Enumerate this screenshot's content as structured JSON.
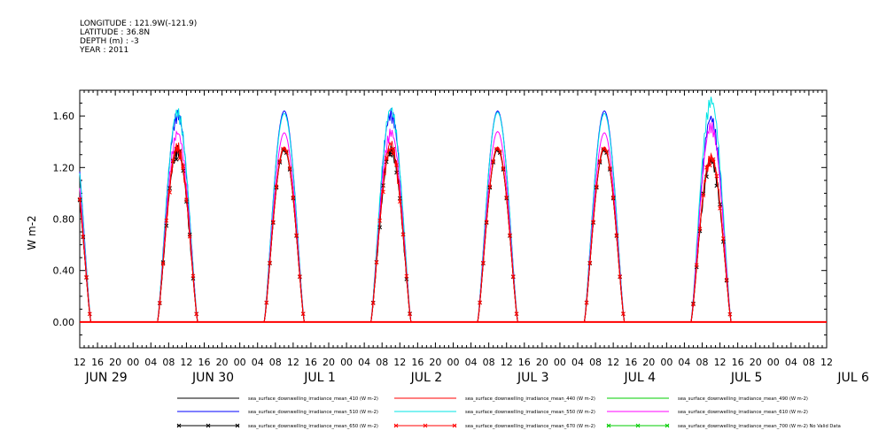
{
  "header": {
    "longitude": "LONGITUDE : 121.9W(-121.9)",
    "latitude": "LATITUDE : 36.8N",
    "depth": "DEPTH (m) : -3",
    "year": "YEAR : 2011"
  },
  "chart_data": {
    "type": "line",
    "ylabel": "W m-2",
    "ylim": [
      -0.2,
      1.8
    ],
    "yticks": [
      0.0,
      0.4,
      0.8,
      1.2,
      1.6
    ],
    "ytick_labels": [
      "0.00",
      "0.40",
      "0.80",
      "1.20",
      "1.60"
    ],
    "xlim_hours": [
      0,
      168
    ],
    "hour_tick_labels": [
      "12",
      "16",
      "20",
      "00",
      "04",
      "08",
      "12",
      "16",
      "20",
      "00",
      "04",
      "08",
      "12",
      "16",
      "20",
      "00",
      "04",
      "08",
      "12",
      "16",
      "20",
      "00",
      "04",
      "08",
      "12",
      "16",
      "20",
      "00",
      "04",
      "08",
      "12",
      "16",
      "20",
      "00",
      "04",
      "08",
      "12",
      "16",
      "20",
      "00",
      "04",
      "08",
      "12"
    ],
    "day_labels": [
      "JUN 29",
      "JUN 30",
      "JUL 1",
      "JUL 2",
      "JUL 3",
      "JUL 4",
      "JUL 5",
      "JUL 6"
    ],
    "grid": false,
    "legend_position": "bottom",
    "series": [
      {
        "name": "sea_surface_downwelling_irradiance_mean_410 (W m-2)",
        "color": "#000000",
        "marker": "none",
        "peaks": [
          1.32,
          1.38,
          1.35,
          1.38,
          1.35,
          1.35,
          1.3
        ]
      },
      {
        "name": "sea_surface_downwelling_irradiance_mean_440 (W m-2)",
        "color": "#ff0000",
        "marker": "none",
        "peaks": [
          1.35,
          1.4,
          1.36,
          1.42,
          1.36,
          1.36,
          1.32
        ]
      },
      {
        "name": "sea_surface_downwelling_irradiance_mean_490 (W m-2)",
        "color": "#00cc00",
        "marker": "none",
        "peaks": [
          1.36,
          1.42,
          1.37,
          1.44,
          1.37,
          1.37,
          1.34
        ]
      },
      {
        "name": "sea_surface_downwelling_irradiance_mean_510 (W m-2)",
        "color": "#0000ff",
        "marker": "none",
        "peaks": [
          1.63,
          1.65,
          1.64,
          1.66,
          1.64,
          1.64,
          1.62
        ]
      },
      {
        "name": "sea_surface_downwelling_irradiance_mean_550 (W m-2)",
        "color": "#00e5e5",
        "marker": "none",
        "peaks": [
          1.61,
          1.67,
          1.62,
          1.69,
          1.63,
          1.62,
          1.76
        ]
      },
      {
        "name": "sea_surface_downwelling_irradiance_mean_610 (W m-2)",
        "color": "#ff00ff",
        "marker": "none",
        "peaks": [
          1.45,
          1.5,
          1.47,
          1.51,
          1.48,
          1.47,
          1.56
        ]
      },
      {
        "name": "sea_surface_downwelling_irradiance_mean_650 (W m-2)",
        "color": "#000000",
        "marker": "x",
        "peaks": [
          1.32,
          1.36,
          1.34,
          1.37,
          1.34,
          1.34,
          1.28
        ]
      },
      {
        "name": "sea_surface_downwelling_irradiance_mean_670 (W m-2)",
        "color": "#ff0000",
        "marker": "x",
        "peaks": [
          1.33,
          1.37,
          1.35,
          1.38,
          1.35,
          1.35,
          1.3
        ]
      },
      {
        "name": "sea_surface_downwelling_irradiance_mean_700 (W m-2) No Valid Data",
        "color": "#00cc00",
        "marker": "x",
        "peaks": []
      }
    ]
  }
}
